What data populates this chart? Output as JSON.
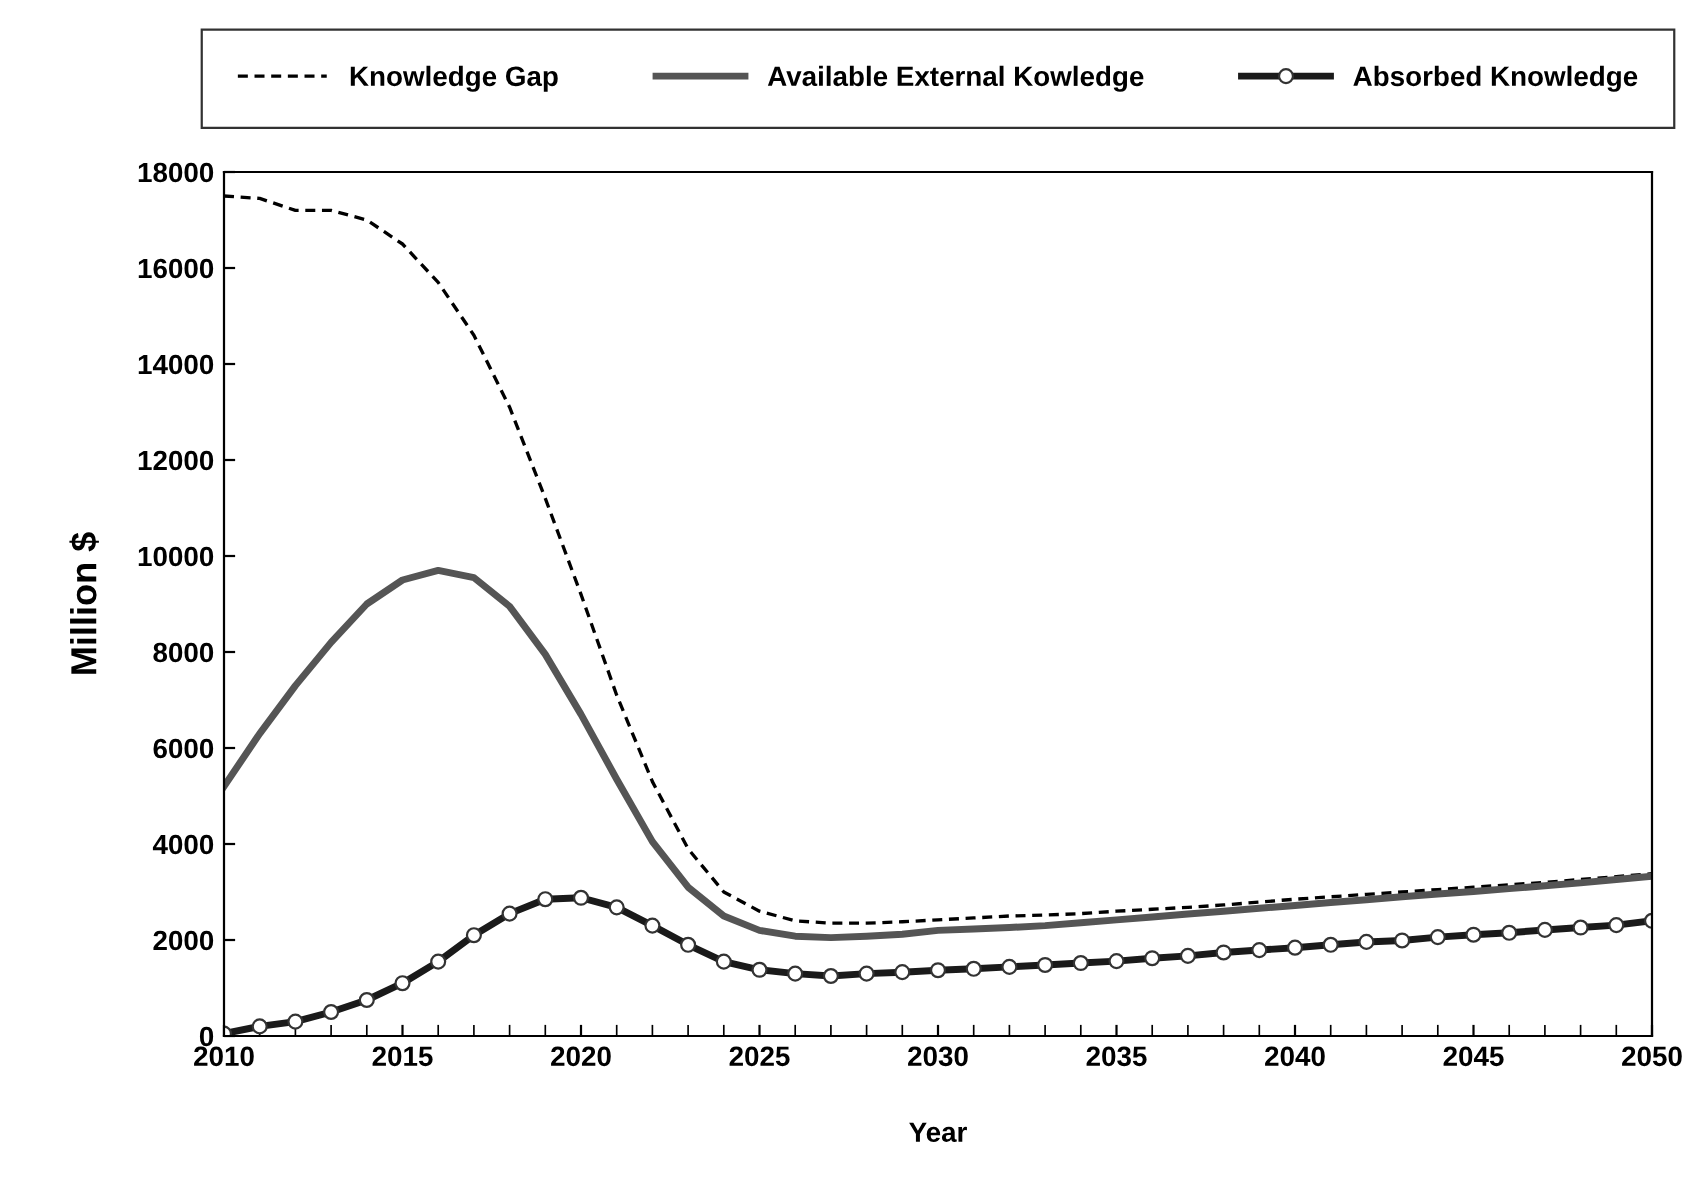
{
  "chart_data": {
    "type": "line",
    "xlabel": "Year",
    "ylabel": "Million $",
    "x": [
      2010,
      2011,
      2012,
      2013,
      2014,
      2015,
      2016,
      2017,
      2018,
      2019,
      2020,
      2021,
      2022,
      2023,
      2024,
      2025,
      2026,
      2027,
      2028,
      2029,
      2030,
      2031,
      2032,
      2033,
      2034,
      2035,
      2036,
      2037,
      2038,
      2039,
      2040,
      2041,
      2042,
      2043,
      2044,
      2045,
      2046,
      2047,
      2048,
      2049,
      2050
    ],
    "series": [
      {
        "name": "Knowledge Gap",
        "color": "#000000",
        "line_style": "dashed",
        "marker": "none",
        "values": [
          17500,
          17450,
          17200,
          17200,
          17000,
          16500,
          15700,
          14600,
          13100,
          11200,
          9200,
          7100,
          5300,
          3900,
          3000,
          2600,
          2400,
          2350,
          2350,
          2380,
          2420,
          2460,
          2500,
          2520,
          2550,
          2600,
          2640,
          2680,
          2730,
          2790,
          2850,
          2900,
          2950,
          3000,
          3050,
          3100,
          3150,
          3200,
          3260,
          3320,
          3380
        ]
      },
      {
        "name": "Available External Kowledge",
        "color": "#555555",
        "line_style": "solid",
        "marker": "none",
        "values": [
          5200,
          6300,
          7300,
          8200,
          9000,
          9500,
          9700,
          9550,
          8950,
          7950,
          6700,
          5350,
          4050,
          3100,
          2500,
          2200,
          2080,
          2050,
          2080,
          2120,
          2200,
          2230,
          2260,
          2300,
          2360,
          2420,
          2480,
          2540,
          2600,
          2660,
          2720,
          2780,
          2840,
          2900,
          2960,
          3010,
          3070,
          3130,
          3190,
          3260,
          3330
        ]
      },
      {
        "name": "Absorbed Knowledge",
        "color": "#1a1a1a",
        "line_style": "solid",
        "marker": "circle",
        "values": [
          50,
          200,
          300,
          500,
          750,
          1100,
          1550,
          2100,
          2550,
          2850,
          2880,
          2680,
          2300,
          1900,
          1550,
          1380,
          1300,
          1250,
          1300,
          1330,
          1370,
          1400,
          1440,
          1480,
          1520,
          1560,
          1620,
          1670,
          1740,
          1790,
          1840,
          1900,
          1960,
          1990,
          2060,
          2110,
          2150,
          2210,
          2260,
          2310,
          2400
        ]
      }
    ],
    "xlim": [
      2010,
      2050
    ],
    "xticks": [
      2010,
      2015,
      2020,
      2025,
      2030,
      2035,
      2040,
      2045,
      2050
    ],
    "ylim": [
      0,
      18000
    ],
    "yticks": [
      0,
      2000,
      4000,
      6000,
      8000,
      10000,
      12000,
      14000,
      16000,
      18000
    ],
    "grid": false,
    "legend": "top"
  }
}
